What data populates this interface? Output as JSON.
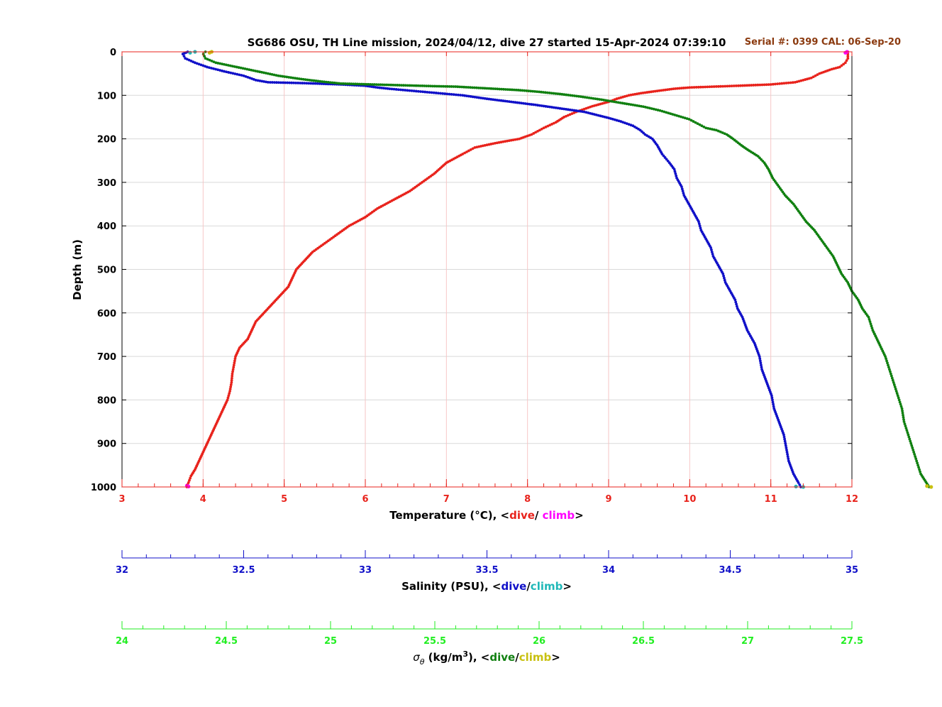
{
  "chart_data": {
    "type": "scatter",
    "title": "SG686 OSU, TH Line mission, 2024/04/12, dive 27 started 15-Apr-2024 07:39:10",
    "annotation": "Serial #: 0399  CAL: 06-Sep-20",
    "y_axis": {
      "label": "Depth (m)",
      "range": [
        0,
        1000
      ],
      "reversed": true,
      "ticks": [
        "0",
        "100",
        "200",
        "300",
        "400",
        "500",
        "600",
        "700",
        "800",
        "900",
        "1000"
      ]
    },
    "grid": true,
    "x_axes": [
      {
        "id": "temperature",
        "color": "#e8231c",
        "range": [
          3,
          12
        ],
        "ticks": [
          "3",
          "4",
          "5",
          "6",
          "7",
          "8",
          "9",
          "10",
          "11",
          "12"
        ],
        "label_prefix": "Temperature (°C), <",
        "label_dive": "dive",
        "label_sep": "/ ",
        "label_climb": "climb",
        "label_suffix": ">",
        "dive_color": "#e8231c",
        "climb_color": "#ff00ff"
      },
      {
        "id": "salinity",
        "color": "#1010c8",
        "range": [
          32,
          35
        ],
        "ticks": [
          "32",
          "32.5",
          "33",
          "33.5",
          "34",
          "34.5",
          "35"
        ],
        "label_prefix": "Salinity (PSU), <",
        "label_dive": "dive",
        "label_sep": "/",
        "label_climb": "climb",
        "label_suffix": ">",
        "dive_color": "#1010c8",
        "climb_color": "#20b8b8"
      },
      {
        "id": "density",
        "color": "#22ee22",
        "range": [
          24,
          27.5
        ],
        "ticks": [
          "24",
          "24.5",
          "25",
          "25.5",
          "26",
          "26.5",
          "27",
          "27.5"
        ],
        "label_symbol": "σ",
        "label_sub": "θ",
        "label_units": " (kg/m",
        "label_sup": "3",
        "label_prefix": "), <",
        "label_dive": "dive",
        "label_sep": "/",
        "label_climb": "climb",
        "label_suffix": ">",
        "dive_color": "#108010",
        "climb_color": "#c8c010"
      }
    ],
    "series": [
      {
        "variable": "temperature",
        "role": "dive",
        "color": "#e8231c",
        "points": [
          [
            11.95,
            0
          ],
          [
            11.95,
            15
          ],
          [
            11.92,
            25
          ],
          [
            11.85,
            35
          ],
          [
            11.75,
            40
          ],
          [
            11.6,
            50
          ],
          [
            11.5,
            60
          ],
          [
            11.3,
            70
          ],
          [
            11.0,
            75
          ],
          [
            10.6,
            78
          ],
          [
            10.3,
            80
          ],
          [
            10.0,
            82
          ],
          [
            9.8,
            85
          ],
          [
            9.6,
            90
          ],
          [
            9.4,
            95
          ],
          [
            9.25,
            100
          ],
          [
            9.1,
            108
          ],
          [
            9.0,
            115
          ],
          [
            8.8,
            125
          ],
          [
            8.6,
            138
          ],
          [
            8.45,
            150
          ],
          [
            8.35,
            162
          ],
          [
            8.2,
            175
          ],
          [
            8.05,
            190
          ],
          [
            7.9,
            200
          ],
          [
            7.6,
            210
          ],
          [
            7.35,
            220
          ],
          [
            7.2,
            235
          ],
          [
            7.0,
            255
          ],
          [
            6.85,
            280
          ],
          [
            6.7,
            300
          ],
          [
            6.55,
            320
          ],
          [
            6.35,
            340
          ],
          [
            6.15,
            360
          ],
          [
            6.0,
            380
          ],
          [
            5.8,
            400
          ],
          [
            5.65,
            420
          ],
          [
            5.5,
            440
          ],
          [
            5.35,
            460
          ],
          [
            5.25,
            480
          ],
          [
            5.15,
            500
          ],
          [
            5.1,
            520
          ],
          [
            5.05,
            540
          ],
          [
            4.95,
            560
          ],
          [
            4.85,
            580
          ],
          [
            4.75,
            600
          ],
          [
            4.65,
            620
          ],
          [
            4.6,
            640
          ],
          [
            4.55,
            660
          ],
          [
            4.45,
            680
          ],
          [
            4.4,
            700
          ],
          [
            4.38,
            720
          ],
          [
            4.36,
            740
          ],
          [
            4.35,
            760
          ],
          [
            4.33,
            780
          ],
          [
            4.3,
            800
          ],
          [
            4.25,
            820
          ],
          [
            4.2,
            840
          ],
          [
            4.15,
            860
          ],
          [
            4.1,
            880
          ],
          [
            4.05,
            900
          ],
          [
            4.0,
            920
          ],
          [
            3.95,
            940
          ],
          [
            3.9,
            960
          ],
          [
            3.85,
            975
          ],
          [
            3.82,
            990
          ],
          [
            3.8,
            1000
          ]
        ]
      },
      {
        "variable": "temperature",
        "role": "climb",
        "color": "#ff00ff",
        "points": [
          [
            3.8,
            997
          ],
          [
            3.82,
            999
          ],
          [
            11.92,
            2
          ],
          [
            11.94,
            0
          ]
        ]
      },
      {
        "variable": "salinity",
        "role": "dive",
        "color": "#1010c8",
        "points": [
          [
            32.27,
            0
          ],
          [
            32.25,
            5
          ],
          [
            32.26,
            15
          ],
          [
            32.3,
            25
          ],
          [
            32.35,
            35
          ],
          [
            32.42,
            45
          ],
          [
            32.5,
            55
          ],
          [
            32.55,
            65
          ],
          [
            32.6,
            70
          ],
          [
            32.75,
            72
          ],
          [
            32.9,
            75
          ],
          [
            33.0,
            78
          ],
          [
            33.05,
            82
          ],
          [
            33.1,
            85
          ],
          [
            33.2,
            90
          ],
          [
            33.3,
            95
          ],
          [
            33.4,
            100
          ],
          [
            33.5,
            108
          ],
          [
            33.6,
            115
          ],
          [
            33.7,
            122
          ],
          [
            33.8,
            130
          ],
          [
            33.9,
            138
          ],
          [
            33.95,
            145
          ],
          [
            34.0,
            152
          ],
          [
            34.05,
            160
          ],
          [
            34.1,
            170
          ],
          [
            34.13,
            180
          ],
          [
            34.15,
            190
          ],
          [
            34.18,
            200
          ],
          [
            34.2,
            215
          ],
          [
            34.22,
            235
          ],
          [
            34.25,
            255
          ],
          [
            34.27,
            270
          ],
          [
            34.28,
            290
          ],
          [
            34.3,
            310
          ],
          [
            34.31,
            330
          ],
          [
            34.33,
            350
          ],
          [
            34.35,
            370
          ],
          [
            34.37,
            390
          ],
          [
            34.38,
            410
          ],
          [
            34.4,
            430
          ],
          [
            34.42,
            450
          ],
          [
            34.43,
            470
          ],
          [
            34.45,
            490
          ],
          [
            34.47,
            510
          ],
          [
            34.48,
            530
          ],
          [
            34.5,
            550
          ],
          [
            34.52,
            570
          ],
          [
            34.53,
            590
          ],
          [
            34.55,
            610
          ],
          [
            34.57,
            640
          ],
          [
            34.6,
            670
          ],
          [
            34.62,
            700
          ],
          [
            34.63,
            730
          ],
          [
            34.65,
            760
          ],
          [
            34.67,
            790
          ],
          [
            34.68,
            820
          ],
          [
            34.7,
            850
          ],
          [
            34.72,
            880
          ],
          [
            34.73,
            910
          ],
          [
            34.74,
            940
          ],
          [
            34.76,
            970
          ],
          [
            34.78,
            990
          ],
          [
            34.79,
            1000
          ]
        ]
      },
      {
        "variable": "salinity",
        "role": "climb",
        "color": "#20b8b8",
        "points": [
          [
            34.77,
            999
          ],
          [
            34.8,
            1000
          ],
          [
            32.28,
            2
          ],
          [
            32.3,
            0
          ]
        ]
      },
      {
        "variable": "density",
        "role": "dive",
        "color": "#108010",
        "points": [
          [
            24.4,
            0
          ],
          [
            24.39,
            5
          ],
          [
            24.4,
            15
          ],
          [
            24.45,
            25
          ],
          [
            24.55,
            35
          ],
          [
            24.65,
            45
          ],
          [
            24.75,
            55
          ],
          [
            24.85,
            62
          ],
          [
            24.95,
            68
          ],
          [
            25.05,
            73
          ],
          [
            25.2,
            75
          ],
          [
            25.35,
            77
          ],
          [
            25.5,
            79
          ],
          [
            25.6,
            80
          ],
          [
            25.75,
            84
          ],
          [
            25.9,
            88
          ],
          [
            26.0,
            92
          ],
          [
            26.1,
            97
          ],
          [
            26.2,
            103
          ],
          [
            26.3,
            110
          ],
          [
            26.4,
            118
          ],
          [
            26.5,
            126
          ],
          [
            26.58,
            135
          ],
          [
            26.65,
            145
          ],
          [
            26.72,
            155
          ],
          [
            26.76,
            165
          ],
          [
            26.8,
            175
          ],
          [
            26.85,
            180
          ],
          [
            26.9,
            190
          ],
          [
            26.93,
            200
          ],
          [
            26.97,
            215
          ],
          [
            27.0,
            225
          ],
          [
            27.05,
            240
          ],
          [
            27.08,
            255
          ],
          [
            27.1,
            270
          ],
          [
            27.12,
            290
          ],
          [
            27.15,
            310
          ],
          [
            27.18,
            330
          ],
          [
            27.22,
            350
          ],
          [
            27.25,
            370
          ],
          [
            27.28,
            390
          ],
          [
            27.32,
            410
          ],
          [
            27.35,
            430
          ],
          [
            27.38,
            450
          ],
          [
            27.41,
            470
          ],
          [
            27.43,
            490
          ],
          [
            27.45,
            510
          ],
          [
            27.48,
            530
          ],
          [
            27.5,
            550
          ],
          [
            27.53,
            570
          ],
          [
            27.55,
            590
          ],
          [
            27.58,
            610
          ],
          [
            27.6,
            640
          ],
          [
            27.63,
            670
          ],
          [
            27.66,
            700
          ],
          [
            27.68,
            730
          ],
          [
            27.7,
            760
          ],
          [
            27.72,
            790
          ],
          [
            27.74,
            820
          ],
          [
            27.75,
            850
          ],
          [
            27.77,
            880
          ],
          [
            27.79,
            910
          ],
          [
            27.81,
            940
          ],
          [
            27.83,
            970
          ],
          [
            27.85,
            985
          ],
          [
            27.87,
            1000
          ]
        ]
      },
      {
        "variable": "density",
        "role": "climb",
        "color": "#c8c010",
        "points": [
          [
            27.86,
            998
          ],
          [
            27.88,
            1000
          ],
          [
            24.42,
            2
          ],
          [
            24.43,
            0
          ]
        ]
      }
    ]
  }
}
